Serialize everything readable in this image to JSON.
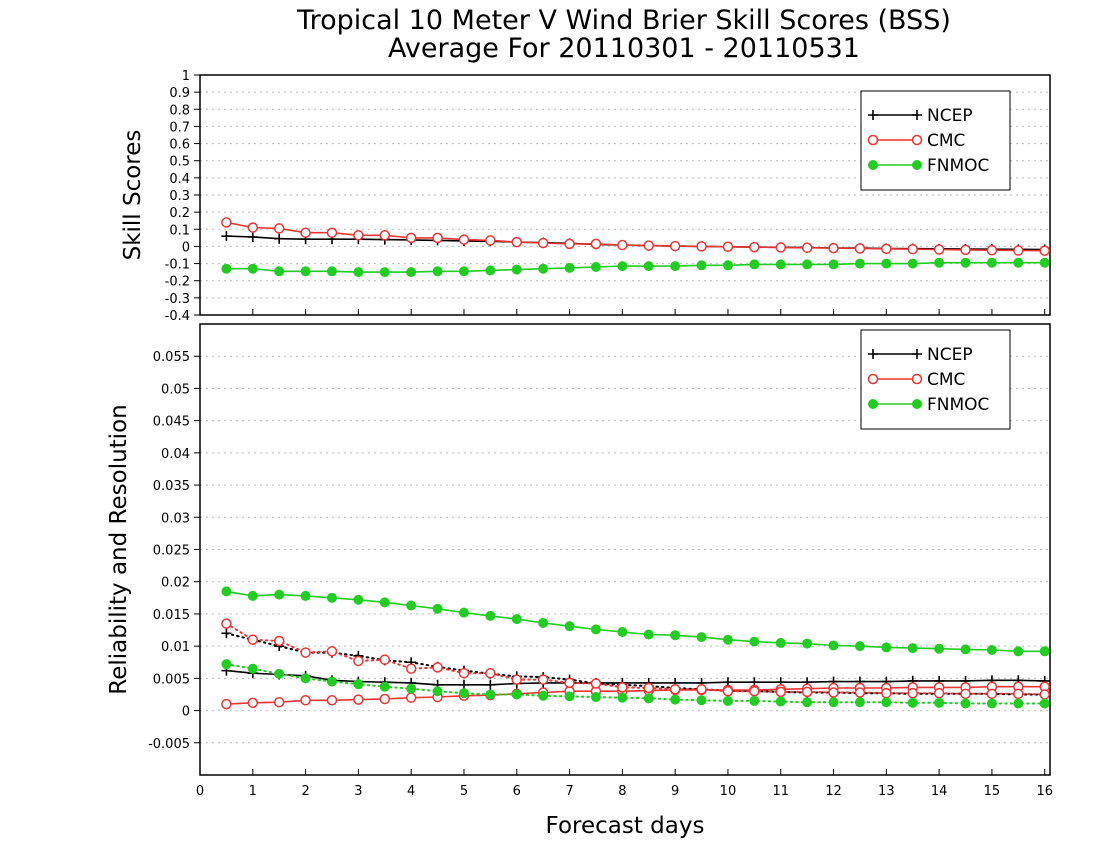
{
  "title": "Tropical 10 Meter V Wind Brier Skill Scores (BSS)",
  "subtitle": "Average For 20110301 - 20110531",
  "colors": {
    "NCEP": "#000000",
    "CMC": "#ee3333",
    "FNMOC": "#22cc22"
  },
  "chart_data": [
    {
      "type": "line",
      "ylabel": "Skill Scores",
      "xlim": [
        0,
        16.1
      ],
      "ylim": [
        -0.4,
        1
      ],
      "yticks": [
        "-0.4",
        "-0.3",
        "-0.2",
        "-0.1",
        "0",
        "0.1",
        "0.2",
        "0.3",
        "0.4",
        "0.5",
        "0.6",
        "0.7",
        "0.8",
        "0.9",
        "1"
      ],
      "grid": true,
      "legend": "top-right",
      "x": [
        0.5,
        1,
        1.5,
        2,
        2.5,
        3,
        3.5,
        4,
        4.5,
        5,
        5.5,
        6,
        6.5,
        7,
        7.5,
        8,
        8.5,
        9,
        9.5,
        10,
        10.5,
        11,
        11.5,
        12,
        12.5,
        13,
        13.5,
        14,
        14.5,
        15,
        15.5,
        16
      ],
      "series": [
        {
          "name": "NCEP",
          "marker": "plus",
          "values": [
            0.06,
            0.055,
            0.045,
            0.042,
            0.042,
            0.042,
            0.04,
            0.038,
            0.035,
            0.032,
            0.03,
            0.025,
            0.022,
            0.018,
            0.012,
            0.008,
            0.005,
            0.002,
            0,
            -0.002,
            -0.004,
            -0.005,
            -0.007,
            -0.009,
            -0.01,
            -0.012,
            -0.013,
            -0.014,
            -0.015,
            -0.016,
            -0.017,
            -0.018
          ]
        },
        {
          "name": "CMC",
          "marker": "open-circle",
          "values": [
            0.14,
            0.11,
            0.105,
            0.08,
            0.08,
            0.065,
            0.065,
            0.05,
            0.05,
            0.04,
            0.035,
            0.025,
            0.02,
            0.015,
            0.015,
            0.008,
            0.005,
            0.002,
            0,
            -0.002,
            -0.004,
            -0.006,
            -0.008,
            -0.01,
            -0.012,
            -0.014,
            -0.016,
            -0.018,
            -0.02,
            -0.022,
            -0.024,
            -0.025
          ]
        },
        {
          "name": "FNMOC",
          "marker": "filled-circle",
          "values": [
            -0.13,
            -0.13,
            -0.145,
            -0.145,
            -0.145,
            -0.15,
            -0.15,
            -0.15,
            -0.145,
            -0.145,
            -0.14,
            -0.135,
            -0.13,
            -0.125,
            -0.12,
            -0.115,
            -0.115,
            -0.115,
            -0.11,
            -0.11,
            -0.105,
            -0.105,
            -0.105,
            -0.105,
            -0.1,
            -0.1,
            -0.1,
            -0.095,
            -0.095,
            -0.095,
            -0.095,
            -0.095
          ]
        }
      ]
    },
    {
      "type": "line",
      "ylabel": "Reliability and Resolution",
      "xlabel": "Forecast days",
      "xlim": [
        0,
        16.1
      ],
      "ylim": [
        -0.01,
        0.06
      ],
      "xticks": [
        "0",
        "1",
        "2",
        "3",
        "4",
        "5",
        "6",
        "7",
        "8",
        "9",
        "10",
        "11",
        "12",
        "13",
        "14",
        "15",
        "16"
      ],
      "yticks": [
        "-0.005",
        "0",
        "0.005",
        "0.01",
        "0.015",
        "0.02",
        "0.025",
        "0.03",
        "0.035",
        "0.04",
        "0.045",
        "0.05",
        "0.055"
      ],
      "grid": true,
      "legend": "top-right",
      "x": [
        0.5,
        1,
        1.5,
        2,
        2.5,
        3,
        3.5,
        4,
        4.5,
        5,
        5.5,
        6,
        6.5,
        7,
        7.5,
        8,
        8.5,
        9,
        9.5,
        10,
        10.5,
        11,
        11.5,
        12,
        12.5,
        13,
        13.5,
        14,
        14.5,
        15,
        15.5,
        16
      ],
      "series": [
        {
          "name": "NCEP",
          "style": "solid",
          "marker": "plus",
          "values": [
            0.0062,
            0.0058,
            0.0056,
            0.0054,
            0.0047,
            0.0045,
            0.0044,
            0.0043,
            0.004,
            0.004,
            0.004,
            0.0042,
            0.0043,
            0.0043,
            0.0043,
            0.0043,
            0.0043,
            0.0043,
            0.0043,
            0.0044,
            0.0044,
            0.0044,
            0.0044,
            0.0045,
            0.0045,
            0.0045,
            0.0046,
            0.0046,
            0.0046,
            0.0047,
            0.0047,
            0.0046
          ]
        },
        {
          "name": "NCEP",
          "style": "dotted",
          "marker": "plus",
          "values": [
            0.012,
            0.011,
            0.01,
            0.009,
            0.009,
            0.0085,
            0.0078,
            0.0075,
            0.0068,
            0.0062,
            0.0057,
            0.0053,
            0.0052,
            0.0048,
            0.0042,
            0.004,
            0.0038,
            0.0035,
            0.0033,
            0.0031,
            0.003,
            0.0029,
            0.0028,
            0.0028,
            0.0027,
            0.0027,
            0.0026,
            0.0026,
            0.0026,
            0.0026,
            0.0025,
            0.0025
          ]
        },
        {
          "name": "CMC",
          "style": "solid",
          "marker": "open-circle",
          "values": [
            0.001,
            0.0012,
            0.0013,
            0.0016,
            0.0016,
            0.0017,
            0.0018,
            0.002,
            0.0021,
            0.0023,
            0.0024,
            0.0026,
            0.0028,
            0.003,
            0.003,
            0.003,
            0.0031,
            0.0032,
            0.0032,
            0.0032,
            0.0032,
            0.0033,
            0.0034,
            0.0035,
            0.0035,
            0.0035,
            0.0036,
            0.0036,
            0.0036,
            0.0037,
            0.0037,
            0.0037
          ]
        },
        {
          "name": "CMC",
          "style": "dotted",
          "marker": "open-circle",
          "values": [
            0.0135,
            0.011,
            0.0108,
            0.009,
            0.0092,
            0.0077,
            0.0079,
            0.0065,
            0.0067,
            0.0058,
            0.0058,
            0.0048,
            0.0048,
            0.0043,
            0.0042,
            0.0036,
            0.0035,
            0.0033,
            0.0033,
            0.003,
            0.003,
            0.0029,
            0.0029,
            0.0028,
            0.0028,
            0.0027,
            0.0027,
            0.0027,
            0.0026,
            0.0026,
            0.0026,
            0.0025
          ]
        },
        {
          "name": "FNMOC",
          "style": "solid",
          "marker": "filled-circle",
          "values": [
            0.0185,
            0.0178,
            0.018,
            0.0178,
            0.0175,
            0.0172,
            0.0168,
            0.0163,
            0.0158,
            0.0152,
            0.0147,
            0.0142,
            0.0136,
            0.0131,
            0.0126,
            0.0122,
            0.0118,
            0.0117,
            0.0114,
            0.011,
            0.0107,
            0.0105,
            0.0104,
            0.0101,
            0.01,
            0.0098,
            0.0097,
            0.0096,
            0.0095,
            0.0094,
            0.0092,
            0.0092
          ]
        },
        {
          "name": "FNMOC",
          "style": "dotted",
          "marker": "filled-circle",
          "values": [
            0.0072,
            0.0065,
            0.0057,
            0.005,
            0.0045,
            0.0041,
            0.0037,
            0.0034,
            0.003,
            0.0027,
            0.0025,
            0.0025,
            0.0023,
            0.0022,
            0.0021,
            0.002,
            0.0019,
            0.0017,
            0.0016,
            0.0015,
            0.0015,
            0.0014,
            0.0013,
            0.0013,
            0.0013,
            0.0013,
            0.0012,
            0.0012,
            0.0011,
            0.0011,
            0.0011,
            0.0011
          ]
        }
      ]
    }
  ]
}
